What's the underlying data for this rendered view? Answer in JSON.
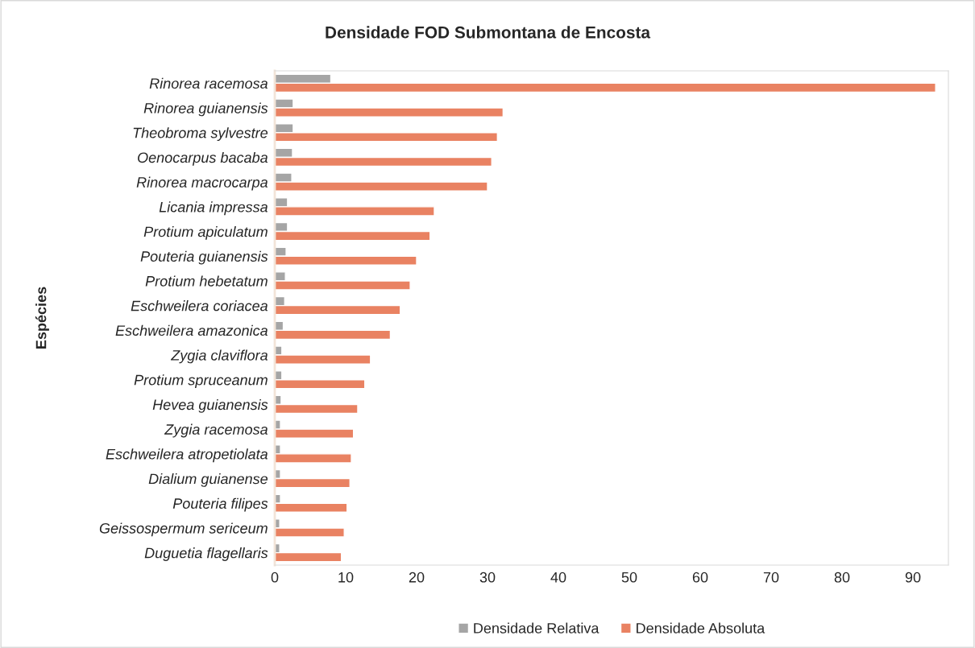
{
  "chart_data": {
    "type": "bar",
    "orientation": "horizontal",
    "title": "Densidade FOD Submontana de Encosta",
    "ylabel": "Espécies",
    "categories": [
      "Rinorea racemosa",
      "Rinorea guianensis",
      "Theobroma sylvestre",
      "Oenocarpus bacaba",
      "Rinorea macrocarpa",
      "Licania impressa",
      "Protium apiculatum",
      "Pouteria guianensis",
      "Protium hebetatum",
      "Eschweilera coriacea",
      "Eschweilera amazonica",
      "Zygia claviflora",
      "Protium spruceanum",
      "Hevea guianensis",
      "Zygia racemosa",
      "Eschweilera atropetiolata",
      "Dialium guianense",
      "Pouteria filipes",
      "Geissospermum sericeum",
      "Duguetia flagellaris"
    ],
    "series": [
      {
        "name": "Densidade Relativa",
        "color": "#a5a5a5",
        "values": [
          7.9,
          2.6,
          2.6,
          2.5,
          2.4,
          1.8,
          1.8,
          1.6,
          1.5,
          1.4,
          1.2,
          1.0,
          1.0,
          0.9,
          0.8,
          0.8,
          0.8,
          0.8,
          0.7,
          0.7
        ]
      },
      {
        "name": "Densidade Absoluta",
        "color": "#e98262",
        "values": [
          93.2,
          32.2,
          31.4,
          30.6,
          30.0,
          22.5,
          21.9,
          20.0,
          19.1,
          17.7,
          16.3,
          13.5,
          12.7,
          11.7,
          11.1,
          10.8,
          10.6,
          10.2,
          9.8,
          9.4
        ]
      }
    ],
    "xlim": [
      0,
      95
    ],
    "xticks": [
      0,
      10,
      20,
      30,
      40,
      50,
      60,
      70,
      80,
      90
    ],
    "grid": false,
    "legend": "bottom"
  }
}
